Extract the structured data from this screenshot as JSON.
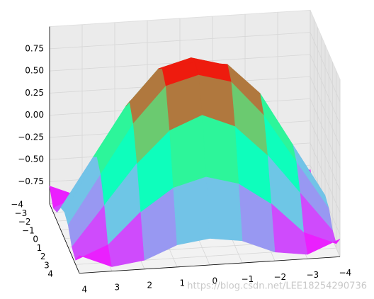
{
  "chart_data": {
    "type": "surface3d",
    "colormap": "rainbow",
    "x": [
      -4,
      -3,
      -2,
      -1,
      0,
      1,
      2,
      3,
      4
    ],
    "y": [
      -4,
      -3,
      -2,
      -1,
      0,
      1,
      2,
      3,
      4
    ],
    "z": [
      [
        -0.8,
        -0.95,
        -0.9,
        -0.75,
        -0.7,
        -0.75,
        -0.9,
        -0.95,
        -0.8
      ],
      [
        -0.95,
        -0.8,
        -0.45,
        -0.2,
        -0.1,
        -0.2,
        -0.45,
        -0.8,
        -0.95
      ],
      [
        -0.9,
        -0.45,
        0,
        0.35,
        0.5,
        0.35,
        0,
        -0.45,
        -0.9
      ],
      [
        -0.75,
        -0.2,
        0.35,
        0.75,
        0.85,
        0.75,
        0.35,
        -0.2,
        -0.75
      ],
      [
        -0.7,
        -0.1,
        0.5,
        0.85,
        0.9,
        0.85,
        0.5,
        -0.1,
        -0.7
      ],
      [
        -0.75,
        -0.2,
        0.35,
        0.75,
        0.85,
        0.75,
        0.35,
        -0.2,
        -0.75
      ],
      [
        -0.9,
        -0.45,
        0,
        0.35,
        0.5,
        0.35,
        0,
        -0.45,
        -0.9
      ],
      [
        -0.95,
        -0.8,
        -0.45,
        -0.2,
        -0.1,
        -0.2,
        -0.45,
        -0.8,
        -0.95
      ],
      [
        -0.8,
        -0.95,
        -0.9,
        -0.75,
        -0.7,
        -0.75,
        -0.9,
        -0.95,
        -0.8
      ]
    ],
    "xlim": [
      -4,
      4
    ],
    "ylim": [
      -4,
      4
    ],
    "zlim": [
      -1,
      1
    ],
    "xticks": [
      {
        "value": -4,
        "label": "−4"
      },
      {
        "value": -3,
        "label": "−3"
      },
      {
        "value": -2,
        "label": "−2"
      },
      {
        "value": -1,
        "label": "−1"
      },
      0,
      1,
      2,
      3,
      4
    ],
    "yticks": [
      {
        "value": -4,
        "label": "−4"
      },
      {
        "value": -3,
        "label": "−3"
      },
      {
        "value": -2,
        "label": "−2"
      },
      {
        "value": -1,
        "label": "−1"
      },
      0,
      1,
      2,
      3,
      4
    ],
    "zticks": [
      {
        "value": -0.75,
        "label": "−0.75"
      },
      {
        "value": -0.5,
        "label": "−0.50"
      },
      {
        "value": -0.25,
        "label": "−0.25"
      },
      {
        "value": 0,
        "label": "0.00"
      },
      0.25,
      {
        "value": 0.5,
        "label": "0.50"
      },
      0.75
    ],
    "grid": true
  },
  "watermark": "https://blog.csdn.net/LEE18254290736"
}
